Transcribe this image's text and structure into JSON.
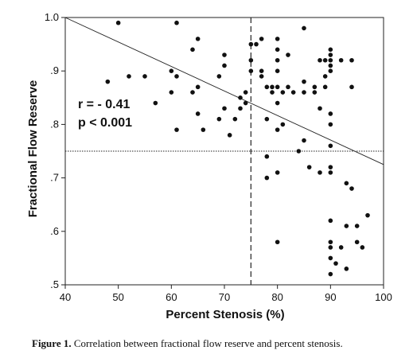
{
  "chart_data": {
    "type": "scatter",
    "xlabel": "Percent Stenosis (%)",
    "ylabel": "Fractional Flow Reserve",
    "xlim": [
      40,
      100
    ],
    "ylim": [
      0.5,
      1.0
    ],
    "x_ticks": [
      40,
      50,
      60,
      70,
      80,
      90,
      100
    ],
    "x_tick_labels": [
      "40",
      "50",
      "60",
      "70",
      "80",
      "90",
      "100"
    ],
    "y_ticks": [
      0.5,
      0.6,
      0.7,
      0.8,
      0.9,
      1.0
    ],
    "y_tick_labels": [
      ".5",
      ".6",
      ".7",
      ".8",
      ".9",
      "1.0"
    ],
    "annotations": [
      "r = - 0.41",
      "p < 0.001"
    ],
    "reference_lines": {
      "vertical_x": 75,
      "horizontal_y": 0.75
    },
    "regression_line": {
      "from": [
        40,
        1.0
      ],
      "to": [
        100,
        0.725
      ]
    },
    "points": [
      [
        48,
        0.88
      ],
      [
        50,
        0.99
      ],
      [
        52,
        0.89
      ],
      [
        55,
        0.89
      ],
      [
        57,
        0.84
      ],
      [
        60,
        0.86
      ],
      [
        60,
        0.9
      ],
      [
        61,
        0.89
      ],
      [
        61,
        0.79
      ],
      [
        61,
        0.99
      ],
      [
        64,
        0.86
      ],
      [
        64,
        0.94
      ],
      [
        65,
        0.96
      ],
      [
        65,
        0.87
      ],
      [
        65,
        0.82
      ],
      [
        66,
        0.79
      ],
      [
        69,
        0.89
      ],
      [
        69,
        0.81
      ],
      [
        70,
        0.91
      ],
      [
        70,
        0.83
      ],
      [
        70,
        0.93
      ],
      [
        71,
        0.78
      ],
      [
        72,
        0.81
      ],
      [
        73,
        0.83
      ],
      [
        73,
        0.85
      ],
      [
        74,
        0.84
      ],
      [
        74,
        0.86
      ],
      [
        75,
        0.9
      ],
      [
        75,
        0.92
      ],
      [
        75,
        0.95
      ],
      [
        76,
        0.95
      ],
      [
        77,
        0.9
      ],
      [
        77,
        0.89
      ],
      [
        77,
        0.96
      ],
      [
        78,
        0.87
      ],
      [
        78,
        0.81
      ],
      [
        78,
        0.74
      ],
      [
        78,
        0.7
      ],
      [
        79,
        0.87
      ],
      [
        79,
        0.86
      ],
      [
        80,
        0.96
      ],
      [
        80,
        0.94
      ],
      [
        80,
        0.9
      ],
      [
        80,
        0.92
      ],
      [
        80,
        0.87
      ],
      [
        80,
        0.84
      ],
      [
        80,
        0.79
      ],
      [
        80,
        0.71
      ],
      [
        80,
        0.58
      ],
      [
        81,
        0.8
      ],
      [
        81,
        0.86
      ],
      [
        82,
        0.87
      ],
      [
        82,
        0.93
      ],
      [
        83,
        0.86
      ],
      [
        84,
        0.75
      ],
      [
        85,
        0.98
      ],
      [
        85,
        0.88
      ],
      [
        85,
        0.86
      ],
      [
        85,
        0.77
      ],
      [
        86,
        0.72
      ],
      [
        87,
        0.86
      ],
      [
        87,
        0.87
      ],
      [
        88,
        0.92
      ],
      [
        88,
        0.83
      ],
      [
        88,
        0.71
      ],
      [
        89,
        0.92
      ],
      [
        89,
        0.87
      ],
      [
        89,
        0.89
      ],
      [
        90,
        0.94
      ],
      [
        90,
        0.93
      ],
      [
        90,
        0.92
      ],
      [
        90,
        0.91
      ],
      [
        90,
        0.9
      ],
      [
        90,
        0.82
      ],
      [
        90,
        0.8
      ],
      [
        90,
        0.76
      ],
      [
        90,
        0.72
      ],
      [
        90,
        0.71
      ],
      [
        90,
        0.62
      ],
      [
        90,
        0.58
      ],
      [
        90,
        0.57
      ],
      [
        90,
        0.55
      ],
      [
        90,
        0.52
      ],
      [
        91,
        0.54
      ],
      [
        92,
        0.92
      ],
      [
        92,
        0.57
      ],
      [
        93,
        0.69
      ],
      [
        93,
        0.61
      ],
      [
        93,
        0.53
      ],
      [
        94,
        0.92
      ],
      [
        94,
        0.87
      ],
      [
        94,
        0.68
      ],
      [
        95,
        0.61
      ],
      [
        95,
        0.58
      ],
      [
        96,
        0.57
      ],
      [
        97,
        0.63
      ]
    ]
  },
  "caption": {
    "label": "Figure 1.",
    "text": " Correlation between fractional flow reserve and percent stenosis."
  }
}
